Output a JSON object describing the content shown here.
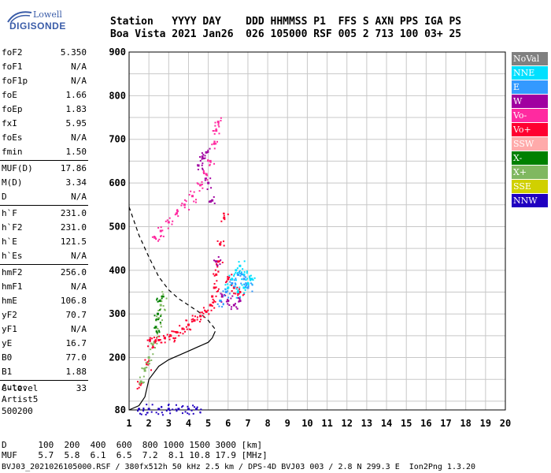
{
  "logo": {
    "line1": "Lowell",
    "line2": "DIGISONDE"
  },
  "header": {
    "line1": "Station   YYYY DAY    DDD HHMMSS P1  FFS S AXN PPS IGA PS",
    "line2": "Boa Vista 2021 Jan26  026 105000 RSF 005 2 713 100 03+ 25"
  },
  "params": {
    "group1": [
      {
        "k": "foF2",
        "v": "5.350"
      },
      {
        "k": "foF1",
        "v": "N/A"
      },
      {
        "k": "foF1p",
        "v": "N/A"
      },
      {
        "k": "foE",
        "v": "1.66"
      },
      {
        "k": "foEp",
        "v": "1.83"
      },
      {
        "k": "fxI",
        "v": "5.95"
      },
      {
        "k": "foEs",
        "v": "N/A"
      },
      {
        "k": "fmin",
        "v": "1.50"
      }
    ],
    "group2": [
      {
        "k": "MUF(D)",
        "v": "17.86"
      },
      {
        "k": "M(D)",
        "v": "3.34"
      },
      {
        "k": "D",
        "v": "N/A"
      }
    ],
    "group3": [
      {
        "k": "h`F",
        "v": "231.0"
      },
      {
        "k": "h`F2",
        "v": "231.0"
      },
      {
        "k": "h`E",
        "v": "121.5"
      },
      {
        "k": "h`Es",
        "v": "N/A"
      }
    ],
    "group4": [
      {
        "k": "hmF2",
        "v": "256.0"
      },
      {
        "k": "hmF1",
        "v": "N/A"
      },
      {
        "k": "hmE",
        "v": "106.8"
      },
      {
        "k": "yF2",
        "v": "70.7"
      },
      {
        "k": "yF1",
        "v": "N/A"
      },
      {
        "k": "yE",
        "v": "16.7"
      },
      {
        "k": "B0",
        "v": "77.0"
      },
      {
        "k": "B1",
        "v": "1.88"
      }
    ],
    "group5": [
      {
        "k": "C-level",
        "v": "33"
      }
    ]
  },
  "auto": {
    "l1": "Auto:",
    "l2": "Artist5",
    "l3": "500200"
  },
  "legend": [
    {
      "label": "NoVal",
      "color": "#808080"
    },
    {
      "label": "NNE",
      "color": "#00e0ff"
    },
    {
      "label": "E",
      "color": "#3399ff"
    },
    {
      "label": "W",
      "color": "#a000a0"
    },
    {
      "label": "Vo-",
      "color": "#ff2aa0"
    },
    {
      "label": "Vo+",
      "color": "#ff0030"
    },
    {
      "label": "SSW",
      "color": "#ffaaaa"
    },
    {
      "label": "X-",
      "color": "#008000"
    },
    {
      "label": "X+",
      "color": "#80b860"
    },
    {
      "label": "SSE",
      "color": "#d0d000"
    },
    {
      "label": "NNW",
      "color": "#2000c0"
    }
  ],
  "footer": {
    "l1": "D      100  200  400  600  800 1000 1500 3000 [km]",
    "l2": "MUF    5.7  5.8  6.1  6.5  7.2  8.1 10.8 17.9 [MHz]",
    "l3": "BVJ03_2021026105000.RSF / 380fx512h 50 kHz 2.5 km / DPS-4D BVJ03 003 / 2.8 N 299.3 E  Ion2Png 1.3.20"
  },
  "chart_data": {
    "type": "scatter",
    "xlim": [
      1,
      20
    ],
    "ylim": [
      80,
      900
    ],
    "xticks": [
      1,
      2,
      3,
      4,
      5,
      6,
      7,
      8,
      9,
      10,
      11,
      12,
      13,
      14,
      15,
      16,
      17,
      18,
      19,
      20
    ],
    "yticks": [
      80,
      200,
      300,
      400,
      500,
      600,
      700,
      800,
      900
    ],
    "grid": true,
    "series": [
      {
        "name": "Vo+",
        "color": "#ff0030",
        "x": [
          1.55,
          1.9,
          2.05,
          2.3,
          2.5,
          2.8,
          3.1,
          3.4,
          3.7,
          4.0,
          4.3,
          4.6,
          4.9,
          5.1,
          5.2,
          5.3,
          5.4,
          5.5,
          5.6,
          5.8,
          6.0,
          6.3,
          6.6
        ],
        "y": [
          140,
          185,
          240,
          235,
          240,
          245,
          250,
          258,
          266,
          275,
          285,
          295,
          305,
          320,
          340,
          360,
          390,
          420,
          460,
          520,
          380,
          360,
          350
        ]
      },
      {
        "name": "Vo-",
        "color": "#ff2aa0",
        "x": [
          2.3,
          2.6,
          3.0,
          3.4,
          3.8,
          4.2,
          4.6,
          4.9,
          5.1,
          5.3,
          5.4,
          5.5
        ],
        "y": [
          475,
          490,
          510,
          530,
          550,
          570,
          595,
          620,
          650,
          690,
          720,
          740
        ]
      },
      {
        "name": "W",
        "color": "#a000a0",
        "x": [
          4.5,
          4.7,
          4.9,
          5.0,
          5.2,
          5.4,
          5.7,
          6.0,
          6.3,
          6.6
        ],
        "y": [
          640,
          660,
          670,
          600,
          560,
          420,
          340,
          330,
          320,
          330
        ]
      },
      {
        "name": "NNE",
        "color": "#00e0ff",
        "x": [
          6.0,
          6.2,
          6.4,
          6.6,
          6.8,
          7.0,
          7.2,
          6.5,
          6.8
        ],
        "y": [
          360,
          380,
          400,
          410,
          390,
          370,
          380,
          350,
          360
        ]
      },
      {
        "name": "E",
        "color": "#3399ff",
        "x": [
          5.6,
          5.9,
          6.2,
          6.5,
          6.8,
          7.0
        ],
        "y": [
          330,
          350,
          370,
          390,
          380,
          360
        ]
      },
      {
        "name": "X+",
        "color": "#80b860",
        "x": [
          1.6,
          1.8,
          2.0,
          2.2,
          2.4,
          2.5,
          2.6,
          2.7
        ],
        "y": [
          145,
          170,
          200,
          230,
          260,
          290,
          320,
          340
        ]
      },
      {
        "name": "X-",
        "color": "#008000",
        "x": [
          2.35,
          2.45,
          2.55
        ],
        "y": [
          270,
          300,
          330
        ]
      },
      {
        "name": "NNW",
        "color": "#2000c0",
        "x": [
          1.5,
          2.0,
          2.5,
          3.0,
          3.5,
          4.0,
          4.4
        ],
        "y": [
          82,
          82,
          82,
          82,
          82,
          82,
          82
        ]
      }
    ],
    "profile": {
      "x": [
        1.0,
        1.5,
        1.8,
        2.0,
        2.5,
        3.0,
        3.5,
        4.0,
        4.5,
        5.0,
        5.2,
        5.35
      ],
      "y": [
        80,
        90,
        110,
        150,
        180,
        195,
        205,
        215,
        225,
        235,
        245,
        260
      ]
    },
    "muf_curve": {
      "x": [
        1.0,
        1.5,
        2.0,
        2.5,
        3.0,
        3.5,
        4.0,
        4.5,
        5.0,
        5.35
      ],
      "y": [
        545,
        480,
        430,
        385,
        355,
        335,
        320,
        305,
        285,
        265
      ]
    }
  }
}
